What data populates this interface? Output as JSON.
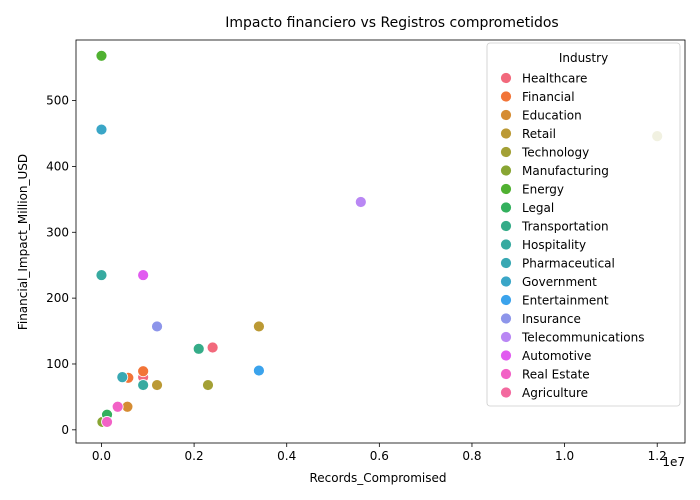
{
  "chart_data": {
    "type": "scatter",
    "title": "Impacto financiero vs Registros comprometidos",
    "xlabel": "Records_Compromised",
    "ylabel": "Financial_Impact_Million_USD",
    "x_offset_text": "1e7",
    "xlim": [
      -550000,
      12600000
    ],
    "ylim": [
      -20,
      592
    ],
    "x_ticks": [
      0,
      2000000,
      4000000,
      6000000,
      8000000,
      10000000,
      12000000
    ],
    "x_tick_labels": [
      "0.0",
      "0.2",
      "0.4",
      "0.6",
      "0.8",
      "1.0",
      "1.2"
    ],
    "y_ticks": [
      0,
      100,
      200,
      300,
      400,
      500
    ],
    "y_tick_labels": [
      "0",
      "100",
      "200",
      "300",
      "400",
      "500"
    ],
    "grid": false,
    "legend": {
      "title": "Industry",
      "placement": "top-right"
    },
    "series": [
      {
        "name": "Healthcare",
        "color": "#f2697c",
        "points": [
          [
            2400000,
            125
          ],
          [
            900000,
            80
          ]
        ]
      },
      {
        "name": "Financial",
        "color": "#f27437",
        "points": [
          [
            900000,
            89
          ],
          [
            580000,
            79
          ]
        ]
      },
      {
        "name": "Education",
        "color": "#d58c32",
        "points": [
          [
            560000,
            35
          ]
        ]
      },
      {
        "name": "Retail",
        "color": "#bb9934",
        "points": [
          [
            3400000,
            157
          ],
          [
            1200000,
            68
          ]
        ]
      },
      {
        "name": "Technology",
        "color": "#a3a035",
        "points": [
          [
            12000000,
            446
          ],
          [
            2300000,
            68
          ]
        ]
      },
      {
        "name": "Manufacturing",
        "color": "#88a533",
        "points": [
          [
            20000,
            12
          ]
        ]
      },
      {
        "name": "Energy",
        "color": "#50b131",
        "points": [
          [
            0,
            568
          ]
        ]
      },
      {
        "name": "Legal",
        "color": "#33b05d",
        "points": [
          [
            120000,
            23
          ]
        ]
      },
      {
        "name": "Transportation",
        "color": "#35ac88",
        "points": [
          [
            2100000,
            123
          ]
        ]
      },
      {
        "name": "Hospitality",
        "color": "#37aaa0",
        "points": [
          [
            0,
            235
          ],
          [
            900000,
            68
          ]
        ]
      },
      {
        "name": "Pharmaceutical",
        "color": "#38a8b3",
        "points": [
          [
            450000,
            80
          ]
        ]
      },
      {
        "name": "Government",
        "color": "#3aa6c7",
        "points": [
          [
            0,
            456
          ]
        ]
      },
      {
        "name": "Entertainment",
        "color": "#3ba3ec",
        "points": [
          [
            3400000,
            90
          ]
        ]
      },
      {
        "name": "Insurance",
        "color": "#8d95ea",
        "points": [
          [
            1200000,
            157
          ]
        ]
      },
      {
        "name": "Telecommunications",
        "color": "#b987f4",
        "points": [
          [
            5600000,
            346
          ]
        ]
      },
      {
        "name": "Automotive",
        "color": "#e15bf0",
        "points": [
          [
            900000,
            235
          ]
        ]
      },
      {
        "name": "Real Estate",
        "color": "#f261c6",
        "points": [
          [
            350000,
            35
          ],
          [
            120000,
            12
          ]
        ]
      },
      {
        "name": "Agriculture",
        "color": "#f3699f",
        "points": []
      }
    ]
  }
}
